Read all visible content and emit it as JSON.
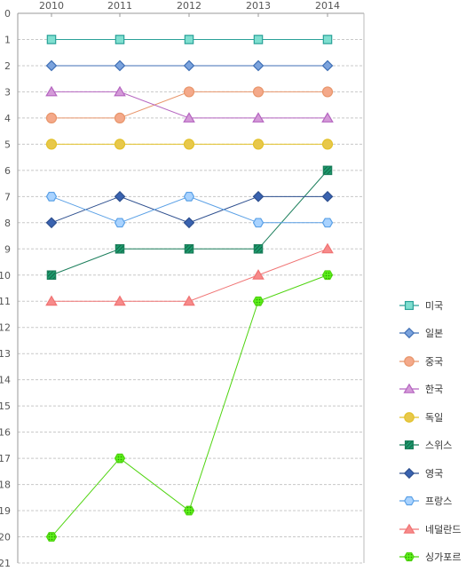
{
  "chart_data": {
    "type": "line",
    "x": [
      "2010",
      "2011",
      "2012",
      "2013",
      "2014"
    ],
    "ylim": [
      0,
      21
    ],
    "y_ticks": [
      "0",
      "1",
      "2",
      "3",
      "4",
      "5",
      "6",
      "7",
      "8",
      "9",
      "10",
      "11",
      "12",
      "13",
      "14",
      "15",
      "16",
      "17",
      "18",
      "19",
      "20",
      "21"
    ],
    "y_reversed": true,
    "x_axis_position": "top",
    "grid": "horizontal-dashed",
    "legend_position": "right",
    "series": [
      {
        "name": "미국",
        "values": [
          1,
          1,
          1,
          1,
          1
        ],
        "color": "#2aa198",
        "fill": "#7fdfd0",
        "marker": "square"
      },
      {
        "name": "일본",
        "values": [
          2,
          2,
          2,
          2,
          2
        ],
        "color": "#3f6fb5",
        "fill": "#7ba3dd",
        "marker": "diamond"
      },
      {
        "name": "중국",
        "values": [
          4,
          4,
          3,
          3,
          3
        ],
        "color": "#e8956a",
        "fill": "#f4a98a",
        "marker": "circle"
      },
      {
        "name": "한국",
        "values": [
          3,
          3,
          4,
          4,
          4
        ],
        "color": "#b565c0",
        "fill": "#d49ad8",
        "marker": "triangle"
      },
      {
        "name": "독일",
        "values": [
          5,
          5,
          5,
          5,
          5
        ],
        "color": "#e2c12a",
        "fill": "#e8c84a",
        "marker": "circle"
      },
      {
        "name": "스위스",
        "values": [
          10,
          9,
          9,
          9,
          6
        ],
        "color": "#1c7f5c",
        "fill": "#1c9a6c",
        "marker": "square-hatched"
      },
      {
        "name": "영국",
        "values": [
          8,
          7,
          8,
          7,
          7
        ],
        "color": "#2d4f8f",
        "fill": "#3a63b0",
        "marker": "diamond"
      },
      {
        "name": "프랑스",
        "values": [
          7,
          8,
          7,
          8,
          8
        ],
        "color": "#5aa0e6",
        "fill": "#a9d3ff",
        "marker": "hexagon"
      },
      {
        "name": "네덜란드",
        "values": [
          11,
          11,
          11,
          10,
          9
        ],
        "color": "#f07373",
        "fill": "#f78a8a",
        "marker": "triangle"
      },
      {
        "name": "싱가포르",
        "values": [
          20,
          17,
          19,
          11,
          10
        ],
        "color": "#4fd40f",
        "fill": "#5cf01a",
        "marker": "hexagon-dotted"
      }
    ]
  }
}
